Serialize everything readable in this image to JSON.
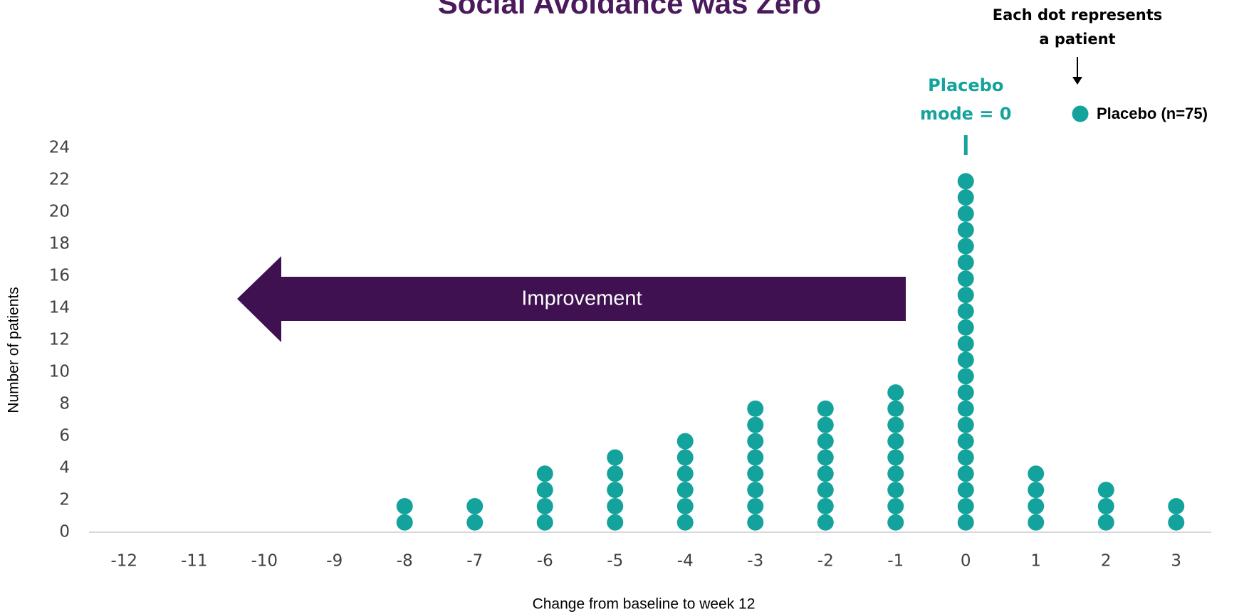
{
  "chart_data": {
    "type": "dot",
    "title": "Social Avoidance was Zero",
    "x_label": "Change from baseline to week 12",
    "y_label": "Number of patients",
    "x": [
      -12,
      -11,
      -10,
      -9,
      -8,
      -7,
      -6,
      -5,
      -4,
      -3,
      -2,
      -1,
      0,
      1,
      2,
      3
    ],
    "series": [
      {
        "name": "Placebo (n=75)",
        "color": "#13a39c",
        "values": [
          0,
          0,
          0,
          0,
          2,
          2,
          4,
          5,
          6,
          8,
          8,
          9,
          22,
          4,
          3,
          2
        ]
      }
    ],
    "xlim": [
      -12.5,
      3.5
    ],
    "xticks": [
      -12,
      -11,
      -10,
      -9,
      -8,
      -7,
      -6,
      -5,
      -4,
      -3,
      -2,
      -1,
      0,
      1,
      2,
      3
    ],
    "ylim": [
      0,
      24
    ],
    "yticks": [
      0,
      2,
      4,
      6,
      8,
      10,
      12,
      14,
      16,
      18,
      20,
      22,
      24
    ],
    "grid": false,
    "legend": "top-right",
    "annotations": {
      "note": "Each dot represents a patient",
      "mode": "Placebo mode = 0",
      "mode_x": 0,
      "arrow": "Improvement"
    }
  }
}
